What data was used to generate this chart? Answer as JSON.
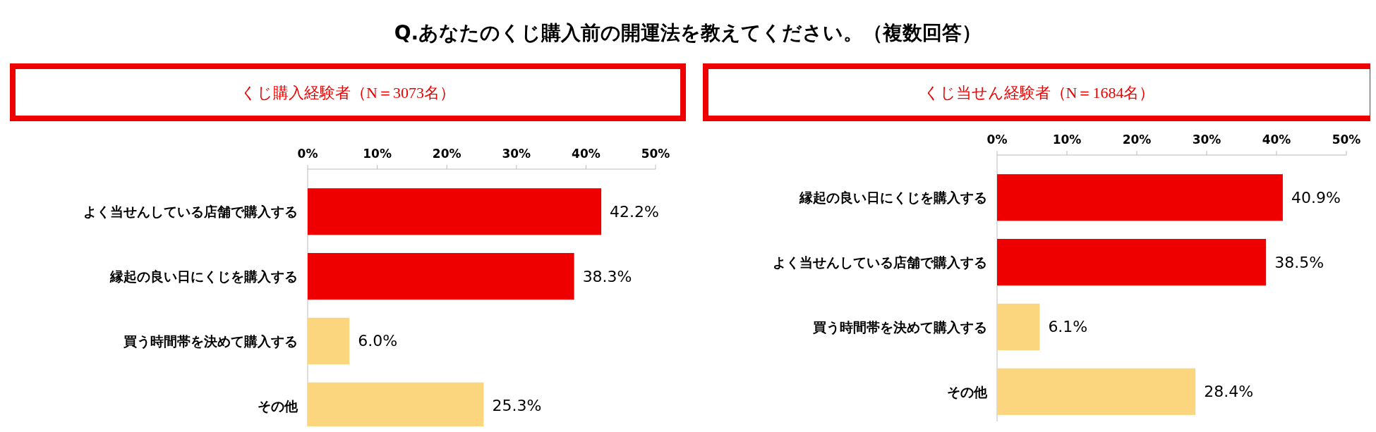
{
  "chart_data": [
    {
      "type": "bar",
      "orientation": "horizontal",
      "title": "Q.あなたのくじ購入前の開運法を教えてください。（複数回答）",
      "subtitle": "くじ購入経験者（N＝3073名）",
      "categories": [
        "よく当せんしている店舗で購入する",
        "縁起の良い日にくじを購入する",
        "買う時間帯を決めて購入する",
        "その他"
      ],
      "values": [
        42.2,
        38.3,
        6.0,
        25.3
      ],
      "colors": [
        "#ee0000",
        "#ee0000",
        "#fcd67e",
        "#fcd67e"
      ],
      "value_labels": [
        "42.2%",
        "38.3%",
        "6.0%",
        "25.3%"
      ],
      "xlim": [
        0,
        50
      ],
      "xticks": [
        {
          "value": 0,
          "label": "0%"
        },
        {
          "value": 10,
          "label": "10%"
        },
        {
          "value": 20,
          "label": "20%"
        },
        {
          "value": 30,
          "label": "30%"
        },
        {
          "value": 40,
          "label": "40%"
        },
        {
          "value": 50,
          "label": "50%"
        }
      ]
    },
    {
      "type": "bar",
      "orientation": "horizontal",
      "subtitle": "くじ当せん経験者（N＝1684名）",
      "categories": [
        "縁起の良い日にくじを購入する",
        "よく当せんしている店舗で購入する",
        "買う時間帯を決めて購入する",
        "その他"
      ],
      "values": [
        40.9,
        38.5,
        6.1,
        28.4
      ],
      "colors": [
        "#ee0000",
        "#ee0000",
        "#fcd67e",
        "#fcd67e"
      ],
      "value_labels": [
        "40.9%",
        "38.5%",
        "6.1%",
        "28.4%"
      ],
      "xlim": [
        0,
        50
      ],
      "xticks": [
        {
          "value": 0,
          "label": "0%"
        },
        {
          "value": 10,
          "label": "10%"
        },
        {
          "value": 20,
          "label": "20%"
        },
        {
          "value": 30,
          "label": "30%"
        },
        {
          "value": 40,
          "label": "40%"
        },
        {
          "value": 50,
          "label": "50%"
        }
      ]
    }
  ]
}
